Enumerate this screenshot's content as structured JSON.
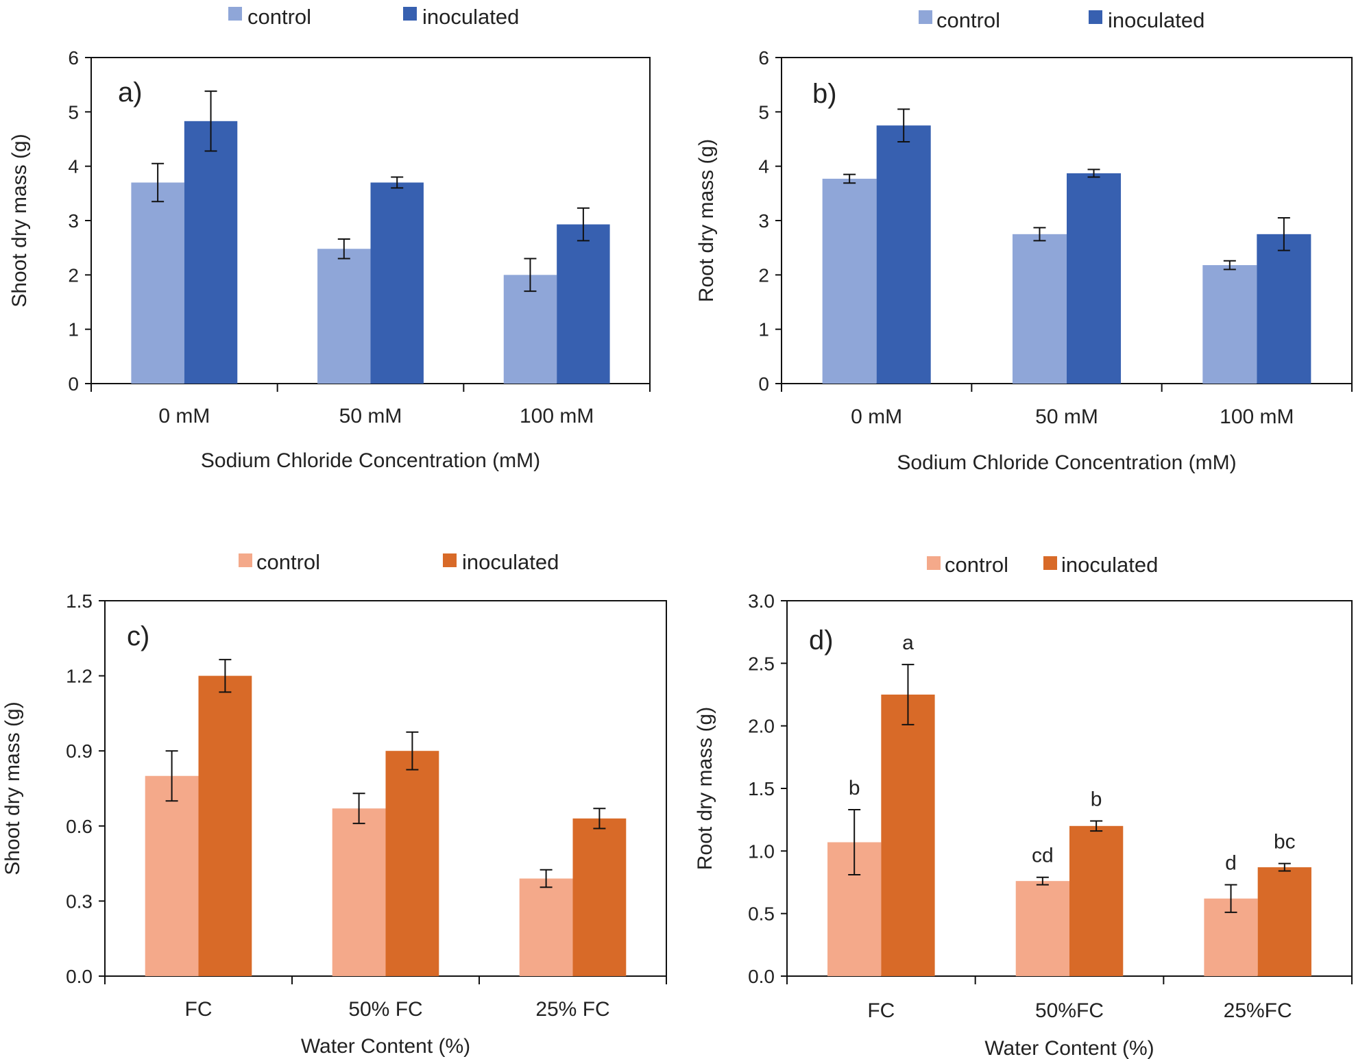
{
  "colors": {
    "axis": "#111111",
    "error_bar": "#111111",
    "blue_control": "#8FA6D8",
    "blue_inoculated": "#3760B0",
    "orange_control": "#F4A98A",
    "orange_inoculated": "#D86A28"
  },
  "chart_data": [
    {
      "id": "a",
      "type": "bar",
      "panel_label": "a)",
      "xlabel": "Sodium Chloride Concentration (mM)",
      "ylabel": "Shoot dry mass (g)",
      "categories": [
        "0 mM",
        "50 mM",
        "100 mM"
      ],
      "ylim": [
        0,
        6
      ],
      "yticks": [
        0,
        1,
        2,
        3,
        4,
        5,
        6
      ],
      "ytick_labels": [
        "0",
        "1",
        "2",
        "3",
        "4",
        "5",
        "6"
      ],
      "legend_position": "top-center",
      "series": [
        {
          "name": "control",
          "color_key": "blue_control",
          "values": [
            3.7,
            2.48,
            2.0
          ],
          "errors": [
            0.35,
            0.18,
            0.3
          ]
        },
        {
          "name": "inoculated",
          "color_key": "blue_inoculated",
          "values": [
            4.83,
            3.7,
            2.93
          ],
          "errors": [
            0.55,
            0.1,
            0.3
          ]
        }
      ],
      "annotations": []
    },
    {
      "id": "b",
      "type": "bar",
      "panel_label": "b)",
      "xlabel": "Sodium Chloride Concentration (mM)",
      "ylabel": "Root dry mass (g)",
      "categories": [
        "0 mM",
        "50 mM",
        "100 mM"
      ],
      "ylim": [
        0,
        6
      ],
      "yticks": [
        0,
        1,
        2,
        3,
        4,
        5,
        6
      ],
      "ytick_labels": [
        "0",
        "1",
        "2",
        "3",
        "4",
        "5",
        "6"
      ],
      "legend_position": "top-center",
      "series": [
        {
          "name": "control",
          "color_key": "blue_control",
          "values": [
            3.77,
            2.75,
            2.18
          ],
          "errors": [
            0.08,
            0.12,
            0.08
          ]
        },
        {
          "name": "inoculated",
          "color_key": "blue_inoculated",
          "values": [
            4.75,
            3.87,
            2.75
          ],
          "errors": [
            0.3,
            0.07,
            0.3
          ]
        }
      ],
      "annotations": []
    },
    {
      "id": "c",
      "type": "bar",
      "panel_label": "c)",
      "xlabel": "Water Content (%)",
      "ylabel": "Shoot dry mass (g)",
      "categories": [
        "FC",
        "50% FC",
        "25% FC"
      ],
      "ylim": [
        0,
        1.5
      ],
      "yticks": [
        0,
        0.3,
        0.6,
        0.9,
        1.2,
        1.5
      ],
      "ytick_labels": [
        "0.0",
        "0.3",
        "0.6",
        "0.9",
        "1.2",
        "1.5"
      ],
      "legend_position": "top-center",
      "series": [
        {
          "name": "control",
          "color_key": "orange_control",
          "values": [
            0.8,
            0.67,
            0.39
          ],
          "errors": [
            0.1,
            0.06,
            0.035
          ]
        },
        {
          "name": "inoculated",
          "color_key": "orange_inoculated",
          "values": [
            1.2,
            0.9,
            0.63
          ],
          "errors": [
            0.065,
            0.075,
            0.04
          ]
        }
      ],
      "annotations": []
    },
    {
      "id": "d",
      "type": "bar",
      "panel_label": "d)",
      "xlabel": "Water Content (%)",
      "ylabel": "Root dry mass (g)",
      "categories": [
        "FC",
        "50%FC",
        "25%FC"
      ],
      "ylim": [
        0,
        3.0
      ],
      "yticks": [
        0,
        0.5,
        1.0,
        1.5,
        2.0,
        2.5,
        3.0
      ],
      "ytick_labels": [
        "0.0",
        "0.5",
        "1.0",
        "1.5",
        "2.0",
        "2.5",
        "3.0"
      ],
      "legend_position": "top-center",
      "series": [
        {
          "name": "control",
          "color_key": "orange_control",
          "values": [
            1.07,
            0.76,
            0.62
          ],
          "errors": [
            0.26,
            0.03,
            0.11
          ]
        },
        {
          "name": "inoculated",
          "color_key": "orange_inoculated",
          "values": [
            2.25,
            1.2,
            0.87
          ],
          "errors": [
            0.24,
            0.04,
            0.03
          ]
        }
      ],
      "annotations": [
        {
          "series": 0,
          "category": 0,
          "text": "b"
        },
        {
          "series": 1,
          "category": 0,
          "text": "a"
        },
        {
          "series": 0,
          "category": 1,
          "text": "cd"
        },
        {
          "series": 1,
          "category": 1,
          "text": "b"
        },
        {
          "series": 0,
          "category": 2,
          "text": "d"
        },
        {
          "series": 1,
          "category": 2,
          "text": "bc"
        }
      ]
    }
  ]
}
